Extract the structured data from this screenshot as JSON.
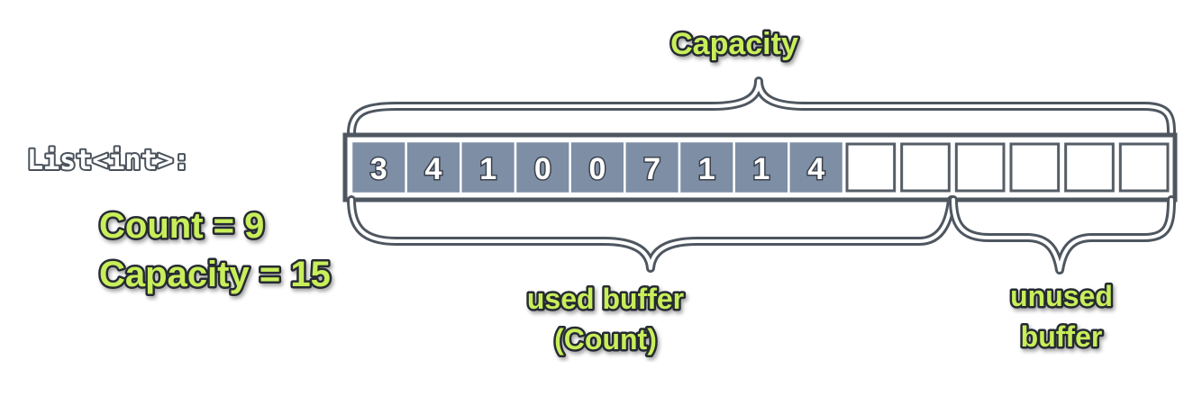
{
  "type_label": "List<int>:",
  "count_text": "Count = 9",
  "capacity_text": "Capacity = 15",
  "capacity_label": "Capacity",
  "used_label_line1": "used buffer",
  "used_label_line2": "(Count)",
  "unused_label_line1": "unused",
  "unused_label_line2": "buffer",
  "values": [
    3,
    4,
    1,
    0,
    0,
    7,
    1,
    1,
    4
  ],
  "count": 9,
  "capacity": 15,
  "visible_slots": 15
}
